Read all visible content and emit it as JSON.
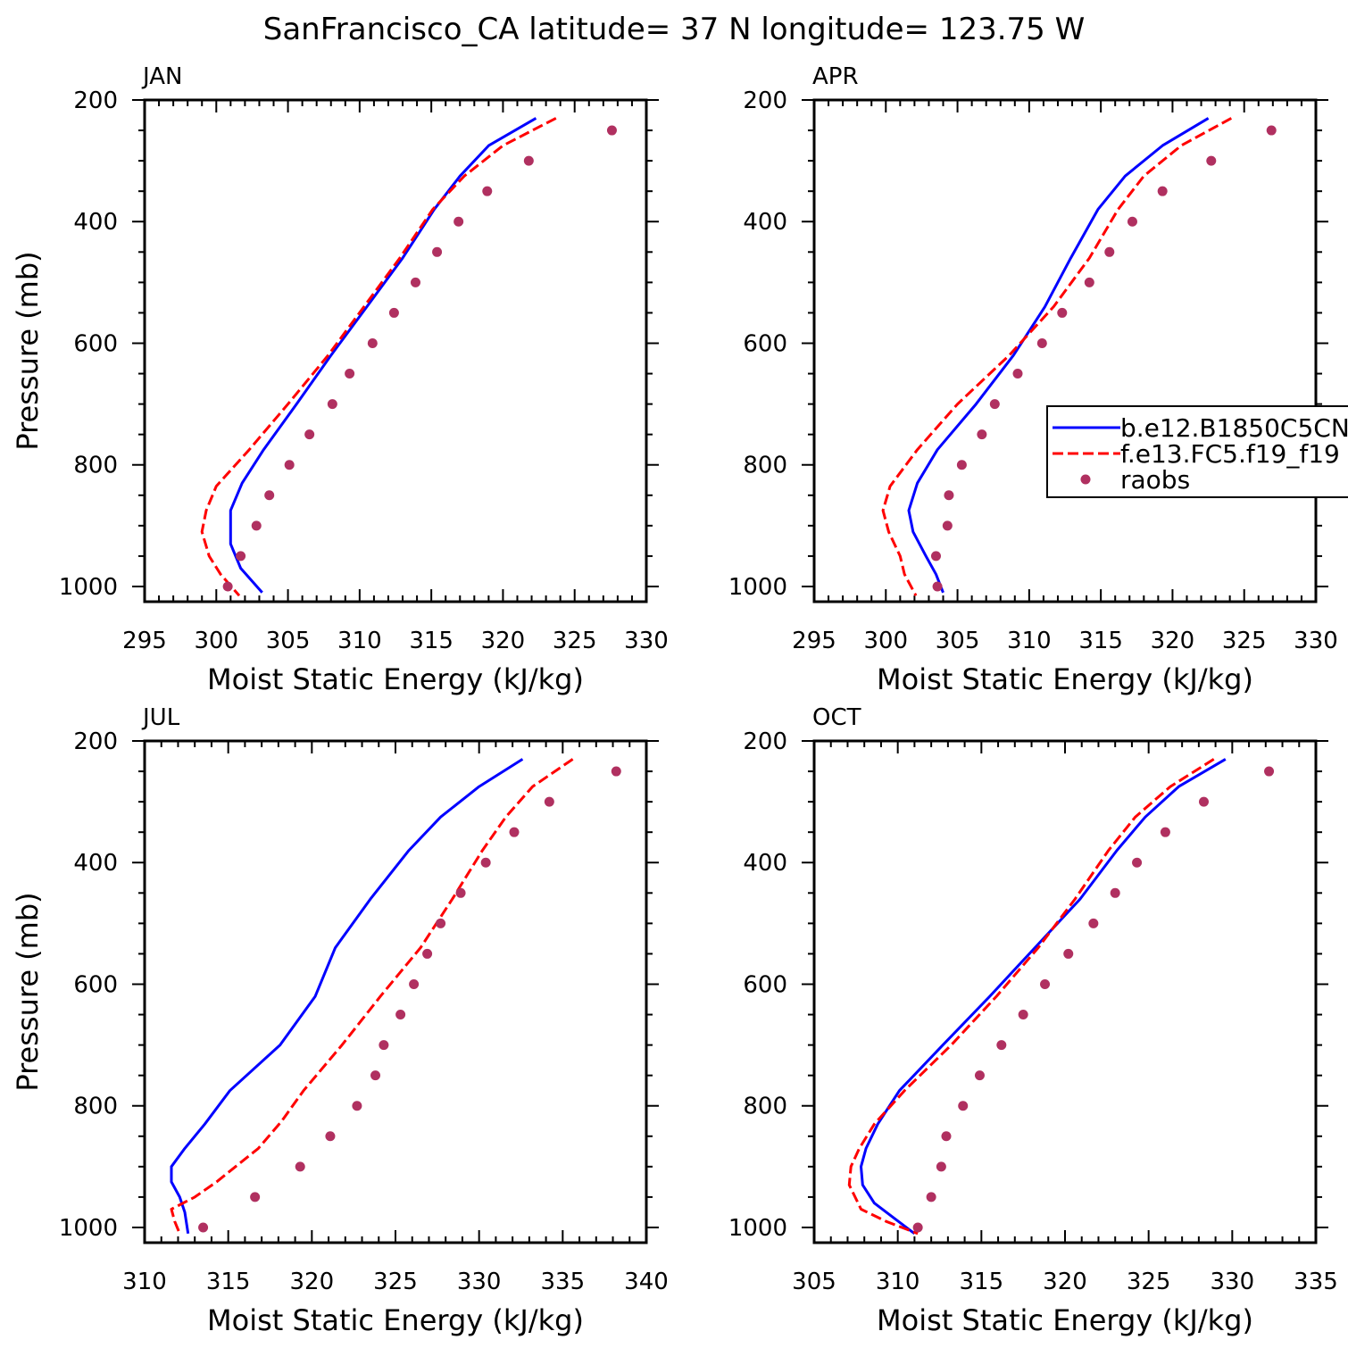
{
  "title": "SanFrancisco_CA  latitude= 37 N longitude= 123.75 W",
  "colors": {
    "model_b": "#0000ff",
    "model_f": "#ff0000",
    "raobs": "#b03060",
    "axis": "#000000"
  },
  "chart_data": [
    {
      "type": "line",
      "panel": "JAN",
      "xlabel": "Moist Static Energy (kJ/kg)",
      "ylabel": "Pressure (mb)",
      "xlim": [
        295,
        330
      ],
      "xticks": [
        295,
        300,
        305,
        310,
        315,
        320,
        325,
        330
      ],
      "ylim": [
        200,
        1025
      ],
      "yticks": [
        200,
        400,
        600,
        800,
        1000
      ],
      "legend": false,
      "series": [
        {
          "name": "b.e12.B1850C5CN",
          "style": "solid",
          "pressure": [
            230,
            275,
            325,
            380,
            460,
            540,
            620,
            700,
            775,
            830,
            875,
            930,
            970,
            1010
          ],
          "values": [
            322.3,
            319.0,
            317.0,
            315.2,
            313.0,
            310.5,
            308.0,
            305.6,
            303.3,
            301.8,
            301.0,
            301.0,
            301.7,
            303.2
          ]
        },
        {
          "name": "f.e13.FC5.f19_f19",
          "style": "dashed",
          "pressure": [
            230,
            275,
            325,
            380,
            460,
            540,
            620,
            700,
            775,
            835,
            875,
            910,
            950,
            980,
            1015
          ],
          "values": [
            323.7,
            320.0,
            317.3,
            315.1,
            312.8,
            310.3,
            307.8,
            305.0,
            302.3,
            300.0,
            299.3,
            299.0,
            299.5,
            300.3,
            301.6
          ]
        },
        {
          "name": "raobs",
          "style": "markers",
          "pressure": [
            250,
            300,
            350,
            400,
            450,
            500,
            550,
            600,
            650,
            700,
            750,
            800,
            850,
            900,
            950,
            1000
          ],
          "values": [
            327.6,
            321.8,
            318.9,
            316.9,
            315.4,
            313.9,
            312.4,
            310.9,
            309.3,
            308.1,
            306.5,
            305.1,
            303.7,
            302.8,
            301.7,
            300.8
          ]
        }
      ]
    },
    {
      "type": "line",
      "panel": "APR",
      "xlabel": "Moist Static Energy (kJ/kg)",
      "ylabel": "",
      "xlim": [
        295,
        330
      ],
      "xticks": [
        295,
        300,
        305,
        310,
        315,
        320,
        325,
        330
      ],
      "ylim": [
        200,
        1025
      ],
      "yticks": [
        200,
        400,
        600,
        800,
        1000
      ],
      "legend": true,
      "legend_position": "right",
      "series": [
        {
          "name": "b.e12.B1850C5CN",
          "style": "solid",
          "pressure": [
            230,
            275,
            325,
            380,
            460,
            540,
            620,
            700,
            775,
            830,
            875,
            910,
            950,
            980,
            1010
          ],
          "values": [
            322.5,
            319.3,
            316.7,
            314.8,
            312.9,
            311.1,
            308.9,
            306.3,
            303.6,
            302.2,
            301.6,
            301.9,
            302.8,
            303.5,
            304.0
          ]
        },
        {
          "name": "f.e13.FC5.f19_f19",
          "style": "dashed",
          "pressure": [
            230,
            275,
            325,
            380,
            460,
            540,
            620,
            700,
            775,
            835,
            875,
            910,
            950,
            980,
            1015
          ],
          "values": [
            324.1,
            320.6,
            318.0,
            316.2,
            314.2,
            311.7,
            308.6,
            305.0,
            302.2,
            300.3,
            299.8,
            300.2,
            301.0,
            301.3,
            302.1
          ]
        },
        {
          "name": "raobs",
          "style": "markers",
          "pressure": [
            250,
            300,
            350,
            400,
            450,
            500,
            550,
            600,
            650,
            700,
            750,
            800,
            850,
            900,
            950,
            1000
          ],
          "values": [
            326.9,
            322.7,
            319.3,
            317.2,
            315.6,
            314.2,
            312.3,
            310.9,
            309.2,
            307.6,
            306.7,
            305.3,
            304.4,
            304.3,
            303.5,
            303.6
          ]
        }
      ]
    },
    {
      "type": "line",
      "panel": "JUL",
      "xlabel": "Moist Static Energy (kJ/kg)",
      "ylabel": "Pressure (mb)",
      "xlim": [
        310,
        340
      ],
      "xticks": [
        310,
        315,
        320,
        325,
        330,
        335,
        340
      ],
      "ylim": [
        200,
        1025
      ],
      "yticks": [
        200,
        400,
        600,
        800,
        1000
      ],
      "legend": false,
      "series": [
        {
          "name": "b.e12.B1850C5CN",
          "style": "solid",
          "pressure": [
            230,
            275,
            325,
            380,
            460,
            540,
            620,
            700,
            775,
            830,
            870,
            900,
            925,
            950,
            975,
            1010
          ],
          "values": [
            332.6,
            330.0,
            327.7,
            325.8,
            323.5,
            321.4,
            320.2,
            318.1,
            315.1,
            313.6,
            312.4,
            311.6,
            311.6,
            312.1,
            312.4,
            312.6
          ]
        },
        {
          "name": "f.e13.FC5.f19_f19",
          "style": "dashed",
          "pressure": [
            230,
            275,
            325,
            380,
            460,
            540,
            620,
            700,
            775,
            825,
            870,
            925,
            950,
            970,
            990,
            1010
          ],
          "values": [
            335.6,
            333.2,
            331.6,
            330.2,
            328.4,
            326.5,
            324.1,
            321.8,
            319.5,
            318.2,
            316.8,
            314.3,
            313.0,
            311.6,
            311.8,
            312.1
          ]
        },
        {
          "name": "raobs",
          "style": "markers",
          "pressure": [
            250,
            300,
            350,
            400,
            450,
            500,
            550,
            600,
            650,
            700,
            750,
            800,
            850,
            900,
            950,
            1000
          ],
          "values": [
            338.2,
            334.2,
            332.1,
            330.4,
            328.9,
            327.7,
            326.9,
            326.1,
            325.3,
            324.3,
            323.8,
            322.7,
            321.1,
            319.3,
            316.6,
            313.5
          ]
        }
      ]
    },
    {
      "type": "line",
      "panel": "OCT",
      "xlabel": "Moist Static Energy (kJ/kg)",
      "ylabel": "",
      "xlim": [
        305,
        335
      ],
      "xticks": [
        305,
        310,
        315,
        320,
        325,
        330,
        335
      ],
      "ylim": [
        200,
        1025
      ],
      "yticks": [
        200,
        400,
        600,
        800,
        1000
      ],
      "legend": false,
      "series": [
        {
          "name": "b.e12.B1850C5CN",
          "style": "solid",
          "pressure": [
            230,
            275,
            325,
            380,
            460,
            540,
            620,
            700,
            775,
            830,
            870,
            900,
            930,
            960,
            985,
            1010
          ],
          "values": [
            329.6,
            326.8,
            324.8,
            323.1,
            320.9,
            318.2,
            315.5,
            312.7,
            310.1,
            308.8,
            308.1,
            307.8,
            307.9,
            308.6,
            309.8,
            311.0
          ]
        },
        {
          "name": "f.e13.FC5.f19_f19",
          "style": "dashed",
          "pressure": [
            230,
            275,
            325,
            380,
            460,
            540,
            620,
            700,
            775,
            830,
            870,
            900,
            930,
            970,
            990,
            1010
          ],
          "values": [
            328.9,
            326.3,
            324.2,
            322.6,
            320.6,
            318.4,
            315.9,
            313.2,
            310.4,
            308.6,
            307.7,
            307.2,
            307.1,
            307.8,
            309.3,
            311.2
          ]
        },
        {
          "name": "raobs",
          "style": "markers",
          "pressure": [
            250,
            300,
            350,
            400,
            450,
            500,
            550,
            600,
            650,
            700,
            750,
            800,
            850,
            900,
            950,
            1000
          ],
          "values": [
            332.2,
            328.3,
            326.0,
            324.3,
            323.0,
            321.7,
            320.2,
            318.8,
            317.5,
            316.2,
            314.9,
            313.9,
            312.9,
            312.6,
            312.0,
            311.2
          ]
        }
      ]
    }
  ],
  "legend": {
    "entries": [
      "b.e12.B1850C5CN",
      "f.e13.FC5.f19_f19",
      "raobs"
    ]
  }
}
